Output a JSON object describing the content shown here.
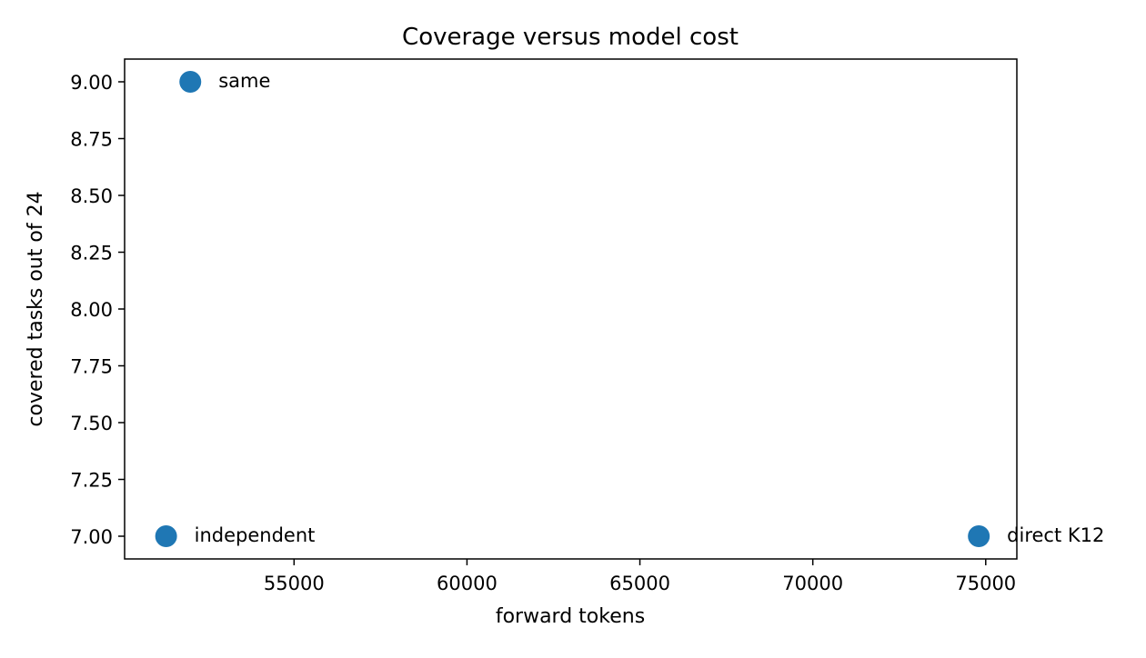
{
  "chart_data": {
    "type": "scatter",
    "title": "Coverage versus model cost",
    "xlabel": "forward tokens",
    "ylabel": "covered tasks out of 24",
    "xlim": [
      50100,
      75900
    ],
    "ylim": [
      6.9,
      9.1
    ],
    "x_ticks": [
      55000,
      60000,
      65000,
      70000,
      75000
    ],
    "y_ticks": [
      7.0,
      7.25,
      7.5,
      7.75,
      8.0,
      8.25,
      8.5,
      8.75,
      9.0
    ],
    "x_tick_labels": [
      "55000",
      "60000",
      "65000",
      "70000",
      "75000"
    ],
    "y_tick_labels": [
      "7.00",
      "7.25",
      "7.50",
      "7.75",
      "8.00",
      "8.25",
      "8.50",
      "8.75",
      "9.00"
    ],
    "grid": false,
    "legend": "none",
    "marker_color": "#1f77b4",
    "points": [
      {
        "label": "same",
        "x": 52000,
        "y": 9
      },
      {
        "label": "independent",
        "x": 51300,
        "y": 7
      },
      {
        "label": "direct K12",
        "x": 74800,
        "y": 7
      }
    ]
  }
}
